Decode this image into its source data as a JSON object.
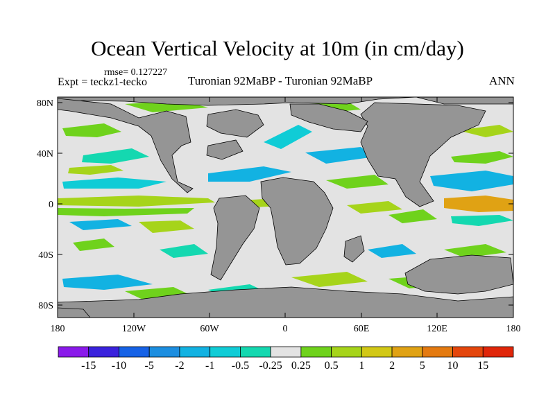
{
  "title": "Ocean Vertical Velocity at 10m (in cm/day)",
  "rmse": "rmse= 0.127227",
  "expt": "Expt = teckz1-tecko",
  "experiment_title": "Turonian  92MaBP - Turonian  92MaBP",
  "season": "ANN",
  "lat_labels": [
    "80N",
    "40N",
    "0",
    "40S",
    "80S"
  ],
  "lon_labels": [
    "180",
    "120W",
    "60W",
    "0",
    "60E",
    "120E",
    "180"
  ],
  "colorbar": {
    "labels": [
      "-15",
      "-10",
      "-5",
      "-2",
      "-1",
      "-0.5",
      "-0.25",
      "0.25",
      "0.5",
      "1",
      "2",
      "5",
      "10",
      "15"
    ],
    "colors": [
      "#8a1aea",
      "#3a22dd",
      "#1662e6",
      "#1c8ee0",
      "#12b2e2",
      "#10ccd6",
      "#14d8b0",
      "#e3e3e3",
      "#6fd21c",
      "#a6d41a",
      "#d2c816",
      "#e0a214",
      "#e47a10",
      "#e4460c",
      "#e0260a"
    ]
  },
  "map": {
    "land_color": "#959595",
    "ocean_color": "#e3e3e3"
  }
}
